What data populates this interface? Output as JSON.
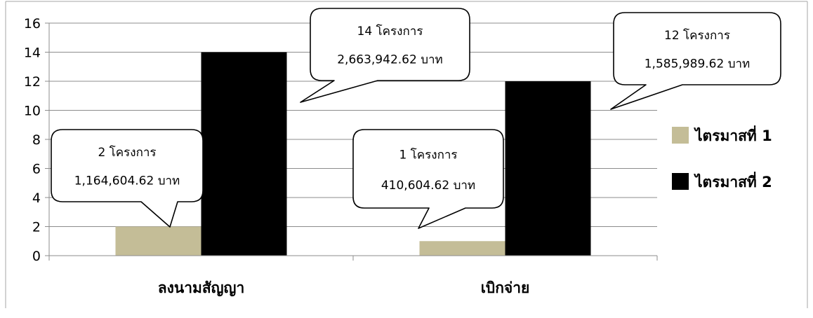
{
  "chart_data": {
    "type": "bar",
    "categories": [
      "ลงนามสัญญา",
      "เบิกจ่าย"
    ],
    "series": [
      {
        "name": "ไตรมาสที่ 1",
        "values": [
          2,
          1
        ],
        "color": "#c4bd97"
      },
      {
        "name": "ไตรมาสที่ 2",
        "values": [
          14,
          12
        ],
        "color": "#000000"
      }
    ],
    "yticks": [
      "0",
      "2",
      "4",
      "6",
      "8",
      "10",
      "12",
      "14",
      "16"
    ],
    "ylim": [
      0,
      16
    ],
    "grid": true,
    "legend": "right",
    "callouts": [
      {
        "line1": "2 โครงการ",
        "line2": "1,164,604.62 บาท",
        "category": 0,
        "series": 0
      },
      {
        "line1": "14 โครงการ",
        "line2": "2,663,942.62 บาท",
        "category": 0,
        "series": 1
      },
      {
        "line1": "1 โครงการ",
        "line2": "410,604.62 บาท",
        "category": 1,
        "series": 0
      },
      {
        "line1": "12 โครงการ",
        "line2": "1,585,989.62 บาท",
        "category": 1,
        "series": 1
      }
    ]
  }
}
